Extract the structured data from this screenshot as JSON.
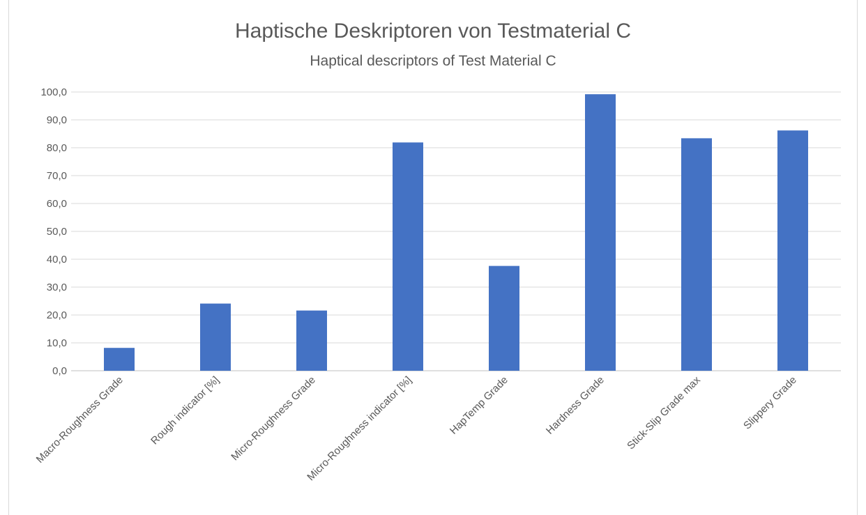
{
  "title": "Haptische Deskriptoren von Testmaterial C",
  "subtitle": "Haptical descriptors of Test Material C",
  "chart_data": {
    "type": "bar",
    "title": "Haptische Deskriptoren von Testmaterial C",
    "subtitle": "Haptical descriptors of Test Material C",
    "categories": [
      "Macro-Roughness Grade",
      "Rough  indicator [%]",
      "Micro-Roughness Grade",
      "Micro-Roughness  indicator [%]",
      "HapTemp Grade",
      "Hardness Grade",
      "Stick-Slip Grade max",
      "Slippery Grade"
    ],
    "values": [
      8.2,
      24.1,
      21.6,
      81.9,
      37.6,
      99.2,
      83.4,
      86.2
    ],
    "ylim": [
      0,
      100
    ],
    "yticks": [
      "0,0",
      "10,0",
      "20,0",
      "30,0",
      "40,0",
      "50,0",
      "60,0",
      "70,0",
      "80,0",
      "90,0",
      "100,0"
    ],
    "grid": true,
    "bar_color": "#4472c4"
  }
}
